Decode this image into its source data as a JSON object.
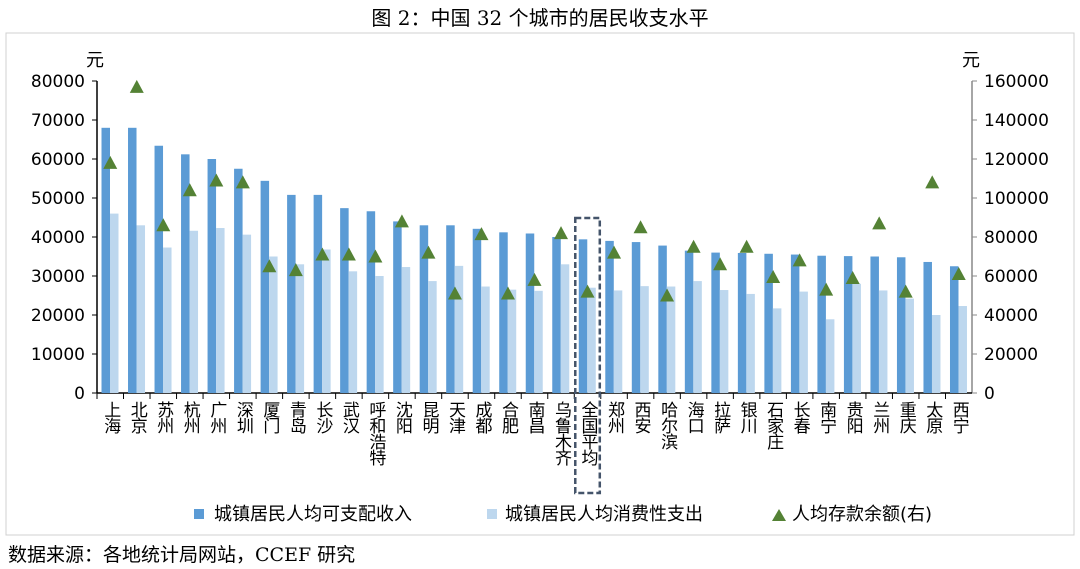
{
  "chart_data": {
    "type": "bar",
    "title": "图 2：中国 32 个城市的居民收支水平",
    "ylabel_left": "元",
    "ylabel_right": "元",
    "ylim_left": [
      0,
      80000
    ],
    "ylim_right": [
      0,
      160000
    ],
    "yticks_left": [
      "0",
      "10000",
      "20000",
      "30000",
      "40000",
      "50000",
      "60000",
      "70000",
      "80000"
    ],
    "yticks_right": [
      "0",
      "20000",
      "40000",
      "60000",
      "80000",
      "100000",
      "120000",
      "140000",
      "160000"
    ],
    "grid": false,
    "legend_position": "bottom",
    "highlight": "全国平均",
    "categories": [
      "上海",
      "北京",
      "苏州",
      "杭州",
      "广州",
      "深圳",
      "厦门",
      "青岛",
      "长沙",
      "武汉",
      "呼和浩特",
      "沈阳",
      "昆明",
      "天津",
      "成都",
      "合肥",
      "南昌",
      "乌鲁木齐",
      "全国平均",
      "郑州",
      "西安",
      "哈尔滨",
      "海口",
      "拉萨",
      "银川",
      "石家庄",
      "长春",
      "南宁",
      "贵阳",
      "兰州",
      "重庆",
      "太原",
      "西宁"
    ],
    "series": [
      {
        "name": "城镇居民人均可支配收入",
        "type": "bar",
        "axis": "left",
        "color": "#5b9bd5",
        "values": [
          68000,
          68000,
          63400,
          61200,
          60000,
          57500,
          54400,
          50800,
          50800,
          47400,
          46600,
          44000,
          43000,
          43000,
          42100,
          41200,
          40900,
          40000,
          39400,
          39000,
          38700,
          37800,
          36500,
          36000,
          35900,
          35700,
          35500,
          35200,
          35100,
          35000,
          34800,
          33600,
          32500
        ]
      },
      {
        "name": "城镇居民人均消费性支出",
        "type": "bar",
        "axis": "left",
        "color": "#bdd7ee",
        "values": [
          46000,
          43000,
          37300,
          41600,
          42300,
          40600,
          35000,
          33000,
          36800,
          31200,
          30000,
          32300,
          28700,
          32600,
          27300,
          26500,
          26200,
          33000,
          27000,
          26300,
          27400,
          27300,
          28700,
          26400,
          25400,
          21700,
          26000,
          18900,
          28000,
          26300,
          24200,
          20000,
          22300
        ]
      },
      {
        "name": "人均存款余额(右)",
        "type": "scatter",
        "axis": "right",
        "color": "#548235",
        "values": [
          118000,
          157000,
          86000,
          104000,
          109000,
          108000,
          65000,
          63000,
          71000,
          71000,
          70000,
          88000,
          72000,
          51000,
          81500,
          51000,
          58000,
          82000,
          52000,
          72000,
          85000,
          50000,
          75000,
          66000,
          75000,
          59500,
          68000,
          53000,
          59000,
          87000,
          52000,
          108000,
          61000
        ]
      }
    ]
  },
  "source": "数据来源：各地统计局网站，CCEF 研究"
}
